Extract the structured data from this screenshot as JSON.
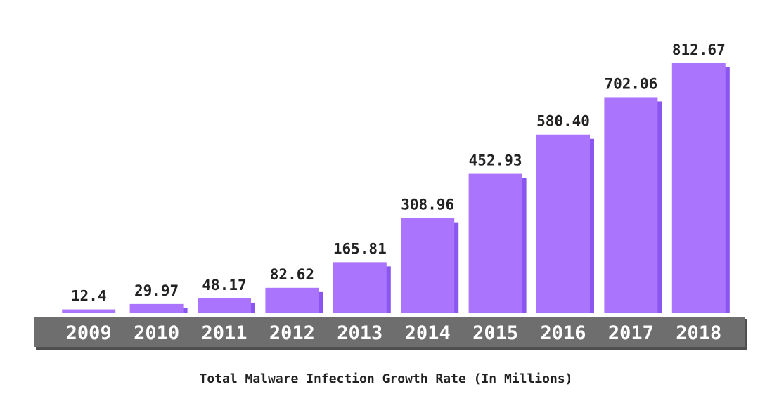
{
  "chart_data": {
    "type": "bar",
    "title": "Total Malware Infection Growth Rate (In Millions)",
    "categories": [
      "2009",
      "2010",
      "2011",
      "2012",
      "2013",
      "2014",
      "2015",
      "2016",
      "2017",
      "2018"
    ],
    "values": [
      12.4,
      29.97,
      48.17,
      82.62,
      165.81,
      308.96,
      452.93,
      580.4,
      702.06,
      812.67
    ],
    "value_labels": [
      "12.4",
      "29.97",
      "48.17",
      "82.62",
      "165.81",
      "308.96",
      "452.93",
      "580.40",
      "702.06",
      "812.67"
    ],
    "xlabel": "",
    "ylabel": "",
    "ylim": [
      0,
      812.67
    ],
    "grid": false,
    "legend": "none",
    "colors": {
      "bar": "#ab74fd",
      "bar_shadow": "#8a55f0",
      "axis_band": "#6e6e6e",
      "axis_band_shadow": "#4f4f4f",
      "tick_text": "#ffffff",
      "label_text": "#222222"
    }
  }
}
